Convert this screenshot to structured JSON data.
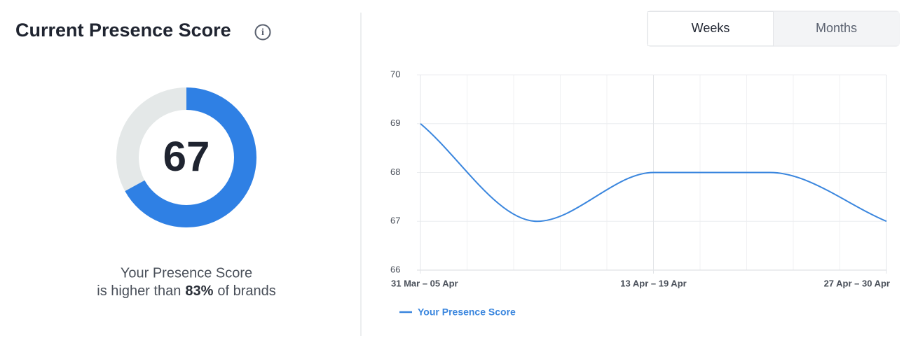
{
  "header": {
    "title": "Current Presence Score",
    "info_icon": "i"
  },
  "donut": {
    "value": 67,
    "lim": [
      0,
      100
    ],
    "color": "#2f80e4",
    "track_color": "#e4e8e8"
  },
  "summary": {
    "line1": "Your Presence Score",
    "line2_pre": "is higher than",
    "line2_value": "83%",
    "line2_post": "of brands"
  },
  "tabs": [
    {
      "label": "Weeks",
      "active": true
    },
    {
      "label": "Months",
      "active": false
    }
  ],
  "chart_data": {
    "type": "line",
    "categories": [
      "31 Mar – 05 Apr",
      null,
      "13 Apr – 19 Apr",
      null,
      "27 Apr – 30 Apr"
    ],
    "series": [
      {
        "name": "Your Presence Score",
        "color": "#3a86de",
        "values": [
          69,
          67,
          68,
          68,
          67
        ]
      }
    ],
    "ylim": [
      66,
      70
    ],
    "yticks": [
      66,
      67,
      68,
      69,
      70
    ],
    "grid": true
  }
}
